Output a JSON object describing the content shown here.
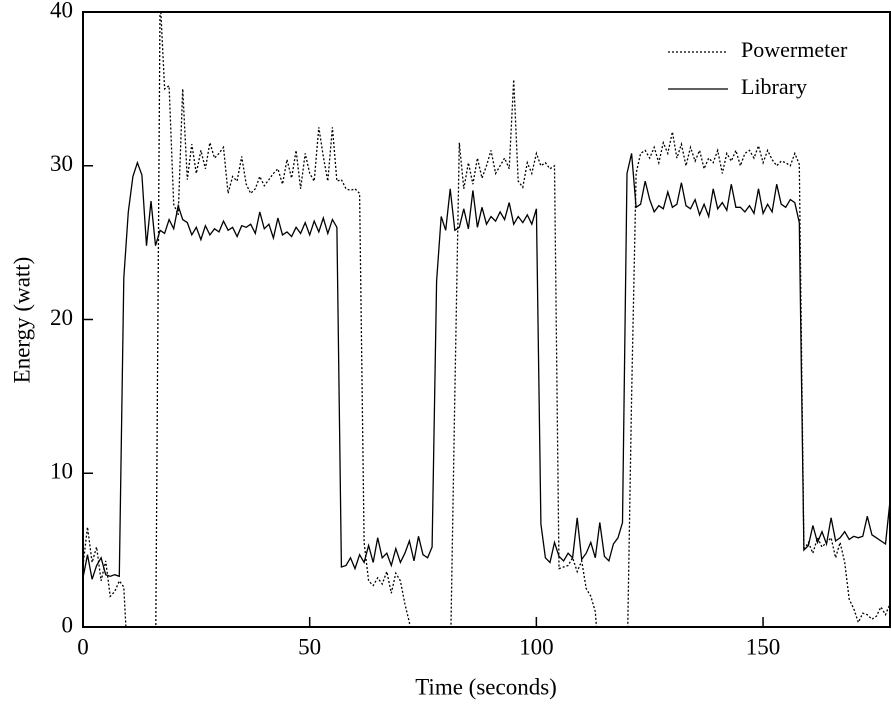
{
  "chart_data": {
    "type": "line",
    "x_label": "Time (seconds)",
    "y_label": "Energy (watt)",
    "xlim": [
      0,
      178
    ],
    "ylim": [
      0,
      40
    ],
    "xticks": [
      0,
      50,
      100,
      150
    ],
    "yticks": [
      0,
      10,
      20,
      30,
      40
    ],
    "legend": "upper right",
    "x": [
      0,
      1,
      2,
      3,
      4,
      5,
      6,
      7,
      8,
      9,
      10,
      11,
      12,
      13,
      14,
      15,
      16,
      17,
      18,
      19,
      20,
      21,
      22,
      23,
      24,
      25,
      26,
      27,
      28,
      29,
      30,
      31,
      32,
      33,
      34,
      35,
      36,
      37,
      38,
      39,
      40,
      41,
      42,
      43,
      44,
      45,
      46,
      47,
      48,
      49,
      50,
      51,
      52,
      53,
      54,
      55,
      56,
      57,
      58,
      59,
      60,
      61,
      62,
      63,
      64,
      65,
      66,
      67,
      68,
      69,
      70,
      71,
      72,
      73,
      74,
      75,
      76,
      77,
      78,
      79,
      80,
      81,
      82,
      83,
      84,
      85,
      86,
      87,
      88,
      89,
      90,
      91,
      92,
      93,
      94,
      95,
      96,
      97,
      98,
      99,
      100,
      101,
      102,
      103,
      104,
      105,
      106,
      107,
      108,
      109,
      110,
      111,
      112,
      113,
      114,
      115,
      116,
      117,
      118,
      119,
      120,
      121,
      122,
      123,
      124,
      125,
      126,
      127,
      128,
      129,
      130,
      131,
      132,
      133,
      134,
      135,
      136,
      137,
      138,
      139,
      140,
      141,
      142,
      143,
      144,
      145,
      146,
      147,
      148,
      149,
      150,
      151,
      152,
      153,
      154,
      155,
      156,
      157,
      158,
      159,
      160,
      161,
      162,
      163,
      164,
      165,
      166,
      167,
      168,
      169,
      170,
      171,
      172,
      173,
      174,
      175,
      176,
      177,
      178
    ],
    "series": [
      {
        "name": "Powermeter",
        "color": "#000000",
        "dash": "dotted",
        "values": [
          4.0,
          6.5,
          4.2,
          5.2,
          3.0,
          4.3,
          2.0,
          2.3,
          3.0,
          2.6,
          -3,
          -3,
          -3,
          -3,
          -3,
          -3,
          -3,
          41,
          35,
          35.2,
          27.5,
          26.8,
          35,
          29.1,
          31.4,
          29.5,
          31.0,
          29.8,
          31.5,
          30.5,
          30.8,
          31.2,
          28.2,
          29.3,
          29.0,
          30.6,
          28.8,
          28.2,
          28.5,
          29.3,
          28.7,
          29.1,
          29.5,
          29.8,
          28.8,
          30.4,
          29.2,
          31.0,
          28.5,
          30.8,
          29.5,
          29.0,
          32.5,
          30.6,
          29.0,
          32.5,
          29.0,
          29.1,
          28.5,
          28.4,
          28.5,
          28.2,
          5.5,
          3.0,
          2.7,
          3.2,
          2.8,
          3.6,
          2.2,
          3.5,
          3.0,
          1.5,
          0.3,
          -3,
          -3,
          -3,
          -3,
          -3,
          -3,
          -3,
          -3,
          -3,
          15,
          31.5,
          28.5,
          30.2,
          28.8,
          30.5,
          29.2,
          30.0,
          31.0,
          29.5,
          30.0,
          30.5,
          29.8,
          35.6,
          29.0,
          28.6,
          30.2,
          29.5,
          30.8,
          30.0,
          30.2,
          29.8,
          30.0,
          3.8,
          3.9,
          4.0,
          4.5,
          3.6,
          4.3,
          2.5,
          2.0,
          1.0,
          -3,
          -3,
          -3,
          -3,
          -3,
          -3,
          -3,
          15,
          29.5,
          30.8,
          31.0,
          30.5,
          31.2,
          30.2,
          31.5,
          30.8,
          32.2,
          30.5,
          31.4,
          30.0,
          31.2,
          30.3,
          31.0,
          29.8,
          30.5,
          30.2,
          31.0,
          29.5,
          30.8,
          30.3,
          31.0,
          30.0,
          30.8,
          31.0,
          30.5,
          31.3,
          30.2,
          31.0,
          30.4,
          30.0,
          30.3,
          30.2,
          30.0,
          30.8,
          30.1,
          5.0,
          5.5,
          4.8,
          5.8,
          5.2,
          5.5,
          5.8,
          4.5,
          5.5,
          4.2,
          1.8,
          1.2,
          0.3,
          0.9,
          0.8,
          0.5,
          0.7,
          1.3,
          0.8,
          1.5
        ]
      },
      {
        "name": "Library",
        "color": "#000000",
        "dash": "solid",
        "values": [
          3.2,
          4.7,
          3.1,
          4.0,
          4.5,
          3.4,
          3.3,
          3.4,
          3.3,
          22.7,
          27.0,
          29.3,
          30.2,
          29.4,
          24.8,
          27.7,
          24.8,
          25.8,
          25.6,
          26.5,
          25.9,
          27.4,
          26.5,
          26.3,
          25.5,
          26.0,
          25.2,
          26.1,
          25.5,
          25.9,
          25.7,
          26.4,
          25.8,
          26.0,
          25.4,
          26.1,
          26.0,
          26.2,
          25.6,
          27.0,
          25.9,
          26.2,
          25.3,
          26.6,
          25.5,
          25.7,
          25.4,
          26.0,
          25.6,
          26.3,
          25.5,
          26.4,
          25.7,
          26.6,
          25.6,
          26.5,
          26.0,
          3.9,
          4.0,
          4.5,
          3.8,
          4.7,
          4.2,
          5.3,
          4.2,
          5.8,
          4.5,
          4.8,
          4.0,
          5.1,
          4.2,
          4.8,
          5.6,
          4.3,
          5.9,
          4.7,
          4.5,
          5.2,
          22.5,
          26.7,
          25.8,
          28.5,
          25.8,
          26.0,
          27.2,
          25.9,
          28.4,
          26.0,
          27.3,
          26.2,
          26.7,
          26.4,
          27.0,
          26.5,
          27.6,
          26.2,
          26.7,
          26.3,
          26.8,
          26.2,
          27.2,
          6.7,
          4.5,
          4.2,
          5.5,
          4.6,
          4.3,
          4.8,
          4.5,
          7.1,
          4.4,
          4.8,
          5.5,
          4.5,
          6.8,
          4.6,
          4.3,
          5.4,
          5.8,
          6.8,
          29.5,
          30.8,
          27.3,
          27.5,
          29.0,
          27.8,
          27.0,
          27.4,
          27.2,
          28.3,
          27.3,
          27.5,
          28.9,
          27.4,
          27.2,
          27.8,
          26.8,
          27.5,
          26.7,
          28.5,
          27.2,
          27.6,
          27.1,
          28.8,
          27.3,
          27.3,
          27.0,
          27.4,
          26.9,
          28.5,
          26.9,
          27.5,
          27.0,
          28.8,
          27.5,
          27.3,
          27.8,
          27.6,
          26.3,
          5.0,
          5.3,
          6.6,
          5.5,
          6.2,
          5.4,
          7.1,
          5.6,
          5.8,
          6.2,
          5.7,
          5.9,
          5.8,
          5.9,
          7.2,
          6.0,
          5.8,
          5.6,
          5.4,
          8.2
        ]
      }
    ]
  }
}
